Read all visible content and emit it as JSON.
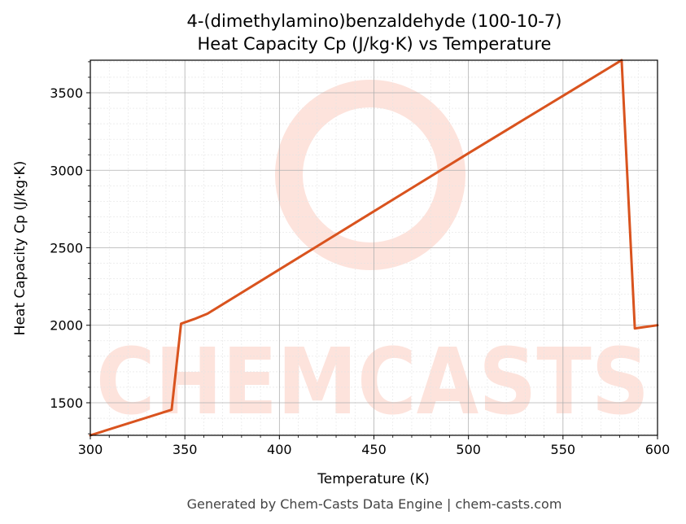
{
  "chart": {
    "title_line1": "4-(dimethylamino)benzaldehyde (100-10-7)",
    "title_line2": "Heat Capacity Cp (J/kg·K) vs Temperature",
    "footer": "Generated by Chem-Casts Data Engine | chem-casts.com",
    "watermark": "CHEMCASTS"
  },
  "colors": {
    "series": "#d9531e",
    "watermark": "#fde3dc",
    "grid_major": "#b0b0b0",
    "grid_minor": "#e4e4e4",
    "footer": "#444444"
  },
  "chart_data": {
    "type": "line",
    "title": "4-(dimethylamino)benzaldehyde (100-10-7)\nHeat Capacity Cp (J/kg·K) vs Temperature",
    "xlabel": "Temperature (K)",
    "ylabel": "Heat Capacity Cp (J/kg·K)",
    "xlim": [
      300,
      600
    ],
    "ylim": [
      1290,
      3710
    ],
    "xticks": [
      300,
      350,
      400,
      450,
      500,
      550,
      600
    ],
    "yticks": [
      1500,
      2000,
      2500,
      3000,
      3500
    ],
    "grid": true,
    "series": [
      {
        "x": [
          300,
          343,
          348,
          355,
          362,
          400,
          450,
          500,
          550,
          581,
          588,
          600
        ],
        "y": [
          1290,
          1455,
          2010,
          2040,
          2075,
          2360,
          2735,
          3110,
          3480,
          3710,
          1980,
          2000
        ]
      }
    ]
  }
}
